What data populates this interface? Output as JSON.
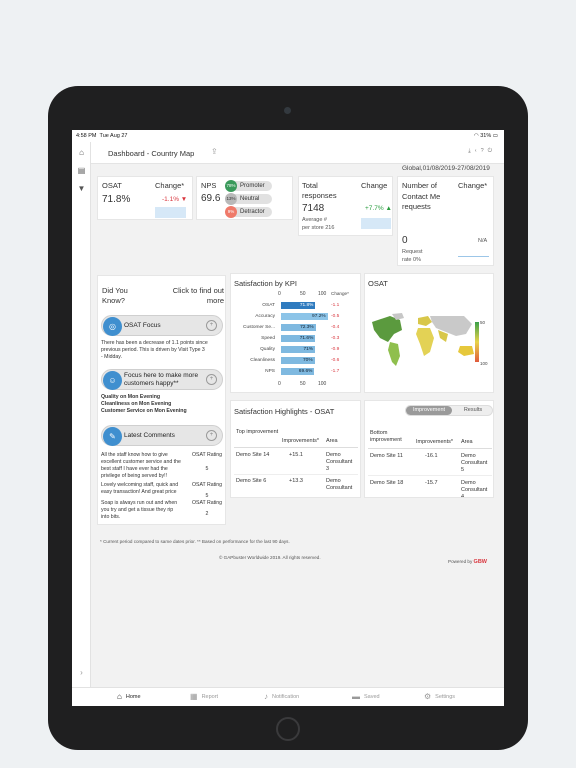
{
  "status": {
    "time": "4:58 PM",
    "date": "Tue Aug 27",
    "battery": "31%"
  },
  "header": {
    "title": "Dashboard - Country Map",
    "period": "Global,01/08/2019-27/08/2019"
  },
  "osat": {
    "label": "OSAT",
    "change_label": "Change*",
    "value": "71.8%",
    "change": "-1.1%"
  },
  "nps": {
    "label": "NPS",
    "value": "69.6",
    "promoter_pct": "78%",
    "promoter": "Promoter",
    "neutral_pct": "13%",
    "neutral": "Neutral",
    "detractor_pct": "9%",
    "detractor": "Detractor"
  },
  "responses": {
    "label": "Total responses",
    "change_label": "Change",
    "value": "7148",
    "change": "+7.7%",
    "avg_label": "Average #",
    "avg_value": "per store 216"
  },
  "contact": {
    "label": "Number of Contact Me requests",
    "change_label": "Change*",
    "value": "0",
    "change": "N/A",
    "rate_label": "Request",
    "rate_value": "rate 0%"
  },
  "dyk": {
    "title": "Did You Know?",
    "link": "Click to find out more",
    "osat_focus": "OSAT Focus",
    "osat_para": [
      "There has been a decrease of 1.1 points since",
      "previous period. This is driven by Visit Type 3",
      "- Midday."
    ],
    "happy": "Focus here to make more customers happy**",
    "happy_para": [
      "Quality on Mon Evening",
      "Cleanliness on Mon Evening",
      "Customer Service on Mon Evening"
    ],
    "comments_title": "Latest Comments",
    "rating_label": "OSAT Rating",
    "comments": [
      {
        "text": [
          "All the staff know how to give",
          "excellent customer service and the",
          "best staff I have ever had the",
          "privilege of being served by!!"
        ],
        "rating": "5"
      },
      {
        "text": [
          "Lovely welcoming staff, quick and",
          "easy transaction! And great price"
        ],
        "rating": "5"
      },
      {
        "text": [
          "Soap is always run out and when",
          "you try and get a tissue they rip",
          "into bits."
        ],
        "rating": "2"
      }
    ]
  },
  "kpi": {
    "title": "Satisfaction by KPI",
    "change_label": "Change*",
    "ticks": [
      "0",
      "50",
      "100"
    ],
    "rows": [
      {
        "label": "OSAT",
        "value": 71.8,
        "display": "71.8%",
        "change": "-1.1",
        "color": "#2f7bbf"
      },
      {
        "label": "Accuracy",
        "value": 97.2,
        "display": "97.2%",
        "change": "-0.5",
        "color": "#8cc4e8"
      },
      {
        "label": "Customer Se...",
        "value": 72.3,
        "display": "72.3%",
        "change": "-0.4",
        "color": "#7fb9e0"
      },
      {
        "label": "Speed",
        "value": 71.6,
        "display": "71.6%",
        "change": "-0.3",
        "color": "#7fb9e0"
      },
      {
        "label": "Quality",
        "value": 71.0,
        "display": "71%",
        "change": "-0.9",
        "color": "#7fb9e0"
      },
      {
        "label": "Cleanliness",
        "value": 70.0,
        "display": "70%",
        "change": "-0.6",
        "color": "#7fb9e0"
      },
      {
        "label": "NPS",
        "value": 69.6,
        "display": "69.6%",
        "change": "-1.7",
        "color": "#7fb9e0"
      }
    ]
  },
  "map": {
    "title": "OSAT",
    "scale_top": "50",
    "scale_bottom": "100"
  },
  "highlights": {
    "title": "Satisfaction Highlights - OSAT",
    "top_label": "Top improvement",
    "improvements_label": "Improvements*",
    "area_label": "Area",
    "top": [
      {
        "site": "Demo Site 14",
        "value": "+15.1",
        "area": [
          "Demo",
          "Consultant",
          "3"
        ]
      },
      {
        "site": "Demo Site 6",
        "value": "+13.3",
        "area": [
          "Demo",
          "Consultant",
          ""
        ]
      }
    ],
    "toggle_a": "Improvement",
    "toggle_b": "Results",
    "bottom_label": "Bottom improvement",
    "bottom": [
      {
        "site": "Demo Site 11",
        "value": "-16.1",
        "area": [
          "Demo",
          "Consultant",
          "5"
        ]
      },
      {
        "site": "Demo Site 18",
        "value": "-15.7",
        "area": [
          "Demo",
          "Consultant",
          "4"
        ]
      }
    ]
  },
  "footer": {
    "note": "* Current period compared to same dates prior. ** Based on performance for the last 90 days.",
    "copyright": "© GAPbuster Worldwide 2019. All rights reserved.",
    "powered": "Powered by",
    "brand": "GBW"
  },
  "nav": [
    "Home",
    "Report",
    "Notification",
    "Saved",
    "Settings"
  ]
}
